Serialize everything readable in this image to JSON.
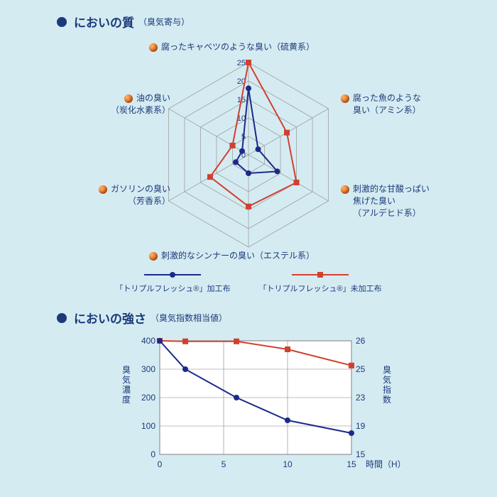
{
  "section1": {
    "title": "においの質",
    "sub": "（臭気寄与）"
  },
  "section2": {
    "title": "においの強さ",
    "sub": "（臭気指数相当値）"
  },
  "radar": {
    "max": 25,
    "rings": [
      5,
      10,
      15,
      20,
      25
    ],
    "tick_labels": [
      "0",
      "5",
      "10",
      "15",
      "20",
      "25"
    ],
    "axis_labels": {
      "top": {
        "l1": "腐ったキャベツのような臭い（硫黄系）"
      },
      "tr": {
        "l1": "腐った魚のような",
        "l2": "臭い（アミン系）"
      },
      "br": {
        "l1": "刺激的な甘酸っぱい",
        "l2": "焦げた臭い",
        "l3": "（アルデヒド系）"
      },
      "bot": {
        "l1": "刺激的なシンナーの臭い（エステル系）"
      },
      "bl": {
        "l1": "ガソリンの臭い",
        "l2": "（芳香系）"
      },
      "tl": {
        "l1": "油の臭い",
        "l2": "（炭化水素系）"
      }
    },
    "grid_color": "#a0a0a0",
    "series": {
      "treated": {
        "color": "#1a2a8a",
        "label": "「トリプルフレッシュ®」加工布",
        "marker": "circle",
        "values": [
          18,
          3,
          9,
          5,
          4,
          2
        ]
      },
      "untreated": {
        "color": "#d04030",
        "label": "「トリプルフレッシュ®」未加工布",
        "marker": "square",
        "values": [
          25,
          12,
          15,
          14,
          12,
          5
        ]
      }
    }
  },
  "line_chart": {
    "x_values": [
      0,
      2,
      6,
      10,
      15
    ],
    "x_ticks": [
      0,
      5,
      10,
      15
    ],
    "x_label": "時間（H）",
    "y_left": {
      "label": "臭気濃度",
      "min": 0,
      "max": 400,
      "ticks": [
        0,
        100,
        200,
        300,
        400
      ]
    },
    "y_right": {
      "label": "臭気指数",
      "ticks": [
        15,
        19,
        23,
        25,
        26
      ]
    },
    "grid_color": "#808080",
    "background": "#ffffff",
    "series": {
      "treated": {
        "color": "#1a2a8a",
        "marker": "circle",
        "y": [
          400,
          300,
          200,
          120,
          75
        ]
      },
      "untreated": {
        "color": "#d04030",
        "marker": "square",
        "y": [
          400,
          398,
          398,
          370,
          313
        ]
      }
    }
  }
}
